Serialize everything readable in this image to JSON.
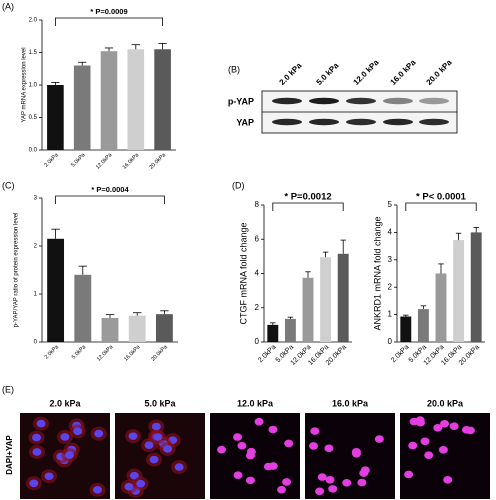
{
  "figure": {
    "panel_labels": [
      "(A)",
      "(B)",
      "(C)",
      "(D)",
      "(E)"
    ],
    "blot": {
      "lanes": [
        "2.0 kPa",
        "5.0 kPa",
        "12.0 kPa",
        "16.0 kPa",
        "20.0 kPa"
      ],
      "rows": [
        "p-YAP",
        "YAP"
      ]
    },
    "micrographs": {
      "stain": "DAPI+YAP",
      "columns": [
        "2.0 kPa",
        "5.0 kPa",
        "12.0 kPa",
        "16.0 kPa",
        "20.0 kPa"
      ]
    }
  },
  "chart_data": [
    {
      "type": "bar",
      "ylabel": "YAP mRNA expression level",
      "categories": [
        "2.0kPa",
        "5.0kPa",
        "12.0kPa",
        "16.0kPa",
        "20.0kPa"
      ],
      "values": [
        1.0,
        1.3,
        1.52,
        1.55,
        1.55
      ],
      "errors": [
        0.04,
        0.05,
        0.05,
        0.07,
        0.09
      ],
      "colors": [
        "#111111",
        "#7a7a7a",
        "#9a9a9a",
        "#cfcfcf",
        "#5a5a5a"
      ],
      "ylim": [
        0,
        2
      ],
      "yticks": [
        {
          "value": 0,
          "label": "0.0"
        },
        0.5,
        {
          "value": 1,
          "label": "1.0"
        },
        1.5,
        {
          "value": 2,
          "label": "2.0"
        }
      ],
      "annotation": "* P=0.0009"
    },
    {
      "type": "bar",
      "ylabel": "p-YAP/YAP ratio  of protein expression level",
      "categories": [
        "2.0kPa",
        "5.0kPa",
        "12.0kPa",
        "16.0kPa",
        "20.0kPa"
      ],
      "values": [
        2.15,
        1.4,
        0.5,
        0.55,
        0.58
      ],
      "errors": [
        0.2,
        0.18,
        0.07,
        0.06,
        0.07
      ],
      "colors": [
        "#111111",
        "#7a7a7a",
        "#9a9a9a",
        "#cfcfcf",
        "#5a5a5a"
      ],
      "ylim": [
        0,
        3
      ],
      "yticks": [
        0,
        1,
        2,
        3
      ],
      "annotation": "* P=0.0004"
    },
    {
      "type": "bar",
      "ylabel": "CTGF mRNA fold change",
      "categories": [
        "2.0kPa",
        "5.0kPa",
        "12.0kPa",
        "16.0kPa",
        "20.0kPa"
      ],
      "values": [
        1.0,
        1.35,
        3.75,
        4.95,
        5.15
      ],
      "errors": [
        0.12,
        0.1,
        0.35,
        0.3,
        0.8
      ],
      "colors": [
        "#111111",
        "#7a7a7a",
        "#9a9a9a",
        "#cfcfcf",
        "#5a5a5a"
      ],
      "ylim": [
        0,
        8
      ],
      "yticks": [
        0,
        2,
        4,
        6,
        8
      ],
      "annotation": "* P=0.0012"
    },
    {
      "type": "bar",
      "ylabel": "ANKRD1 mRNA fold change",
      "categories": [
        "2.0kPa",
        "5.0kPa",
        "12.0kPa",
        "16.0kPa",
        "20.0kPa"
      ],
      "values": [
        0.93,
        1.2,
        2.5,
        3.72,
        4.0
      ],
      "errors": [
        0.05,
        0.12,
        0.35,
        0.25,
        0.18
      ],
      "colors": [
        "#111111",
        "#7a7a7a",
        "#9a9a9a",
        "#cfcfcf",
        "#5a5a5a"
      ],
      "ylim": [
        0,
        5
      ],
      "yticks": [
        0,
        1,
        2,
        3,
        4,
        5
      ],
      "annotation": "* P< 0.0001"
    }
  ]
}
